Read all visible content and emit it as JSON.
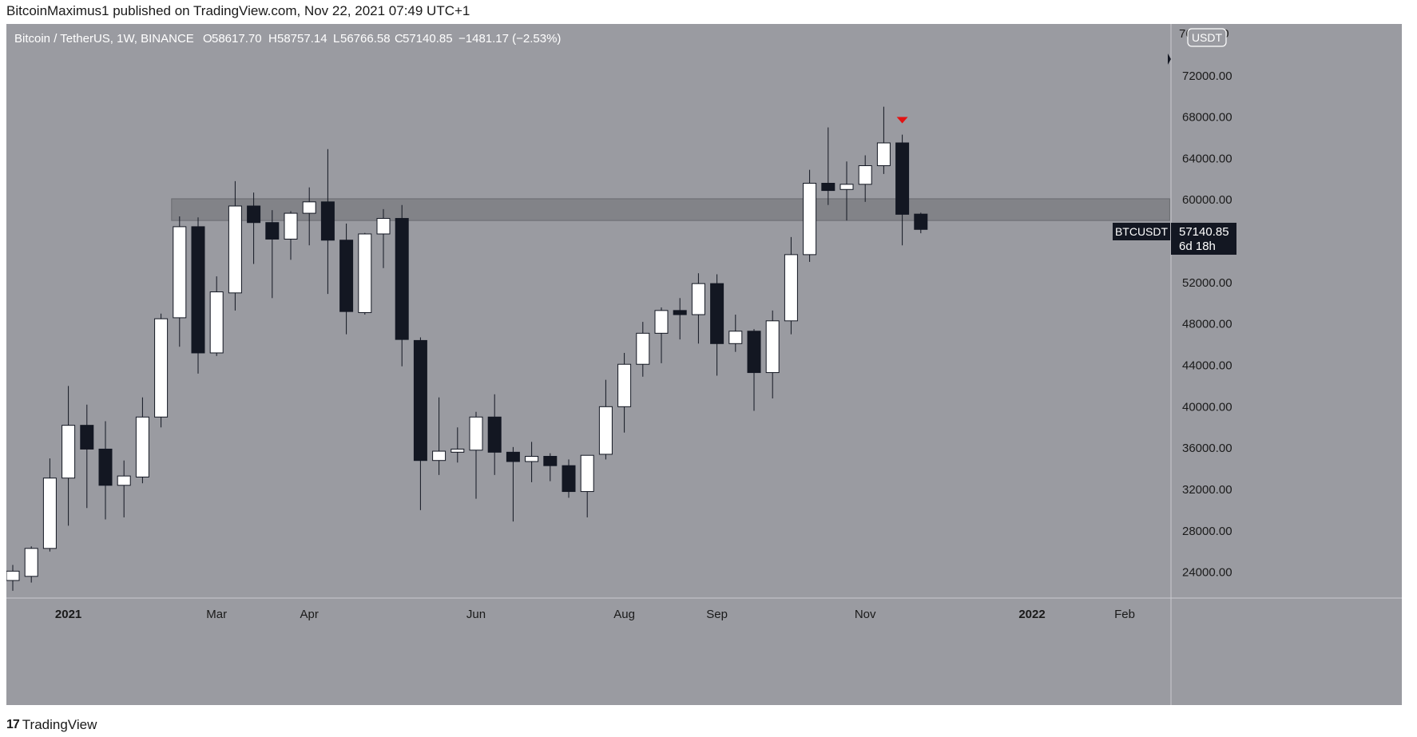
{
  "header": {
    "publisher_line": "BitcoinMaximus1 published on TradingView.com, Nov 22, 2021 07:49 UTC+1"
  },
  "legend": {
    "symbol": "Bitcoin / TetherUS, 1W, BINANCE",
    "open_label": "O",
    "open": "58617.70",
    "high_label": "H",
    "high": "58757.14",
    "low_label": "L",
    "low": "56766.58",
    "close_label": "C",
    "close": "57140.85",
    "change": "−1481.17 (−2.53%)"
  },
  "price_axis": {
    "currency_badge": "USDT",
    "top_partial_label": "76000.00"
  },
  "last_price_tag": {
    "ticker": "BTCUSDT",
    "price": "57140.85",
    "countdown": "6d 18h"
  },
  "footer": {
    "brand": "TradingView",
    "logo_mark": "17"
  },
  "colors": {
    "plot_background": "#9a9ba1",
    "bull_body": "#ffffff",
    "bear_body": "#131722",
    "wick": "#131722",
    "zone_fill": "#7a7b80",
    "marker": "#e31212",
    "axis_text": "#1a1a1a",
    "price_tag_bg": "#131722"
  },
  "chart_data": {
    "type": "candlestick",
    "title": "Bitcoin / TetherUS, 1W, BINANCE",
    "timeframe": "1W",
    "ylim": [
      21500,
      77000
    ],
    "y_ticks": [
      24000,
      28000,
      32000,
      36000,
      40000,
      44000,
      48000,
      52000,
      56000,
      60000,
      64000,
      68000,
      72000
    ],
    "y_tick_labels": [
      "24000.00",
      "28000.00",
      "32000.00",
      "36000.00",
      "40000.00",
      "44000.00",
      "48000.00",
      "52000.00",
      "56000.00",
      "60000.00",
      "64000.00",
      "68000.00",
      "72000.00"
    ],
    "x_labels": [
      {
        "label": "2021",
        "index": 3,
        "bold": true
      },
      {
        "label": "Mar",
        "index": 11,
        "bold": false
      },
      {
        "label": "Apr",
        "index": 16,
        "bold": false
      },
      {
        "label": "Jun",
        "index": 25,
        "bold": false
      },
      {
        "label": "Aug",
        "index": 33,
        "bold": false
      },
      {
        "label": "Sep",
        "index": 38,
        "bold": false
      },
      {
        "label": "Nov",
        "index": 46,
        "bold": false
      },
      {
        "label": "2022",
        "index": 55,
        "bold": true
      },
      {
        "label": "Feb",
        "index": 60,
        "bold": false
      }
    ],
    "x_count": 64,
    "candles": [
      {
        "o": 23200,
        "h": 24700,
        "l": 22200,
        "c": 24100
      },
      {
        "o": 23600,
        "h": 26500,
        "l": 23000,
        "c": 26300
      },
      {
        "o": 26300,
        "h": 35000,
        "l": 26000,
        "c": 33100
      },
      {
        "o": 33100,
        "h": 42000,
        "l": 28500,
        "c": 38200
      },
      {
        "o": 38200,
        "h": 40200,
        "l": 30200,
        "c": 35900
      },
      {
        "o": 35900,
        "h": 38600,
        "l": 29100,
        "c": 32400
      },
      {
        "o": 32400,
        "h": 34800,
        "l": 29300,
        "c": 33300
      },
      {
        "o": 33200,
        "h": 40900,
        "l": 32600,
        "c": 39000
      },
      {
        "o": 39000,
        "h": 49000,
        "l": 38000,
        "c": 48500
      },
      {
        "o": 48600,
        "h": 58400,
        "l": 45800,
        "c": 57400
      },
      {
        "o": 57400,
        "h": 58300,
        "l": 43200,
        "c": 45200
      },
      {
        "o": 45200,
        "h": 52600,
        "l": 44900,
        "c": 51100
      },
      {
        "o": 51000,
        "h": 61800,
        "l": 49300,
        "c": 59400
      },
      {
        "o": 59400,
        "h": 60700,
        "l": 53800,
        "c": 57800
      },
      {
        "o": 57800,
        "h": 59000,
        "l": 50500,
        "c": 56200
      },
      {
        "o": 56200,
        "h": 58900,
        "l": 54200,
        "c": 58700
      },
      {
        "o": 58700,
        "h": 61200,
        "l": 55600,
        "c": 59800
      },
      {
        "o": 59800,
        "h": 64900,
        "l": 50900,
        "c": 56100
      },
      {
        "o": 56100,
        "h": 57700,
        "l": 47000,
        "c": 49200
      },
      {
        "o": 49100,
        "h": 56800,
        "l": 48900,
        "c": 56700
      },
      {
        "o": 56700,
        "h": 59100,
        "l": 53400,
        "c": 58200
      },
      {
        "o": 58200,
        "h": 59500,
        "l": 43900,
        "c": 46500
      },
      {
        "o": 46400,
        "h": 46700,
        "l": 30000,
        "c": 34800
      },
      {
        "o": 34800,
        "h": 40900,
        "l": 33400,
        "c": 35700
      },
      {
        "o": 35600,
        "h": 38000,
        "l": 34600,
        "c": 35900
      },
      {
        "o": 35800,
        "h": 39500,
        "l": 31100,
        "c": 39000
      },
      {
        "o": 39000,
        "h": 41200,
        "l": 33400,
        "c": 35600
      },
      {
        "o": 35600,
        "h": 36100,
        "l": 28900,
        "c": 34700
      },
      {
        "o": 34700,
        "h": 36600,
        "l": 32700,
        "c": 35200
      },
      {
        "o": 35200,
        "h": 35500,
        "l": 32800,
        "c": 34300
      },
      {
        "o": 34300,
        "h": 34900,
        "l": 31200,
        "c": 31800
      },
      {
        "o": 31800,
        "h": 35300,
        "l": 29300,
        "c": 35300
      },
      {
        "o": 35400,
        "h": 42600,
        "l": 34900,
        "c": 40000
      },
      {
        "o": 40000,
        "h": 45200,
        "l": 37500,
        "c": 44100
      },
      {
        "o": 44100,
        "h": 48200,
        "l": 42900,
        "c": 47100
      },
      {
        "o": 47100,
        "h": 49600,
        "l": 44200,
        "c": 49300
      },
      {
        "o": 49300,
        "h": 50500,
        "l": 46500,
        "c": 48900
      },
      {
        "o": 48900,
        "h": 52900,
        "l": 46100,
        "c": 51900
      },
      {
        "o": 51900,
        "h": 52800,
        "l": 43000,
        "c": 46100
      },
      {
        "o": 46100,
        "h": 48900,
        "l": 45300,
        "c": 47300
      },
      {
        "o": 47300,
        "h": 47500,
        "l": 39600,
        "c": 43300
      },
      {
        "o": 43300,
        "h": 49300,
        "l": 40800,
        "c": 48300
      },
      {
        "o": 48300,
        "h": 56400,
        "l": 47000,
        "c": 54700
      },
      {
        "o": 54700,
        "h": 62900,
        "l": 54000,
        "c": 61600
      },
      {
        "o": 61600,
        "h": 67000,
        "l": 59500,
        "c": 60900
      },
      {
        "o": 61000,
        "h": 63700,
        "l": 58000,
        "c": 61500
      },
      {
        "o": 61500,
        "h": 64300,
        "l": 59800,
        "c": 63300
      },
      {
        "o": 63300,
        "h": 69000,
        "l": 62500,
        "c": 65500
      },
      {
        "o": 65500,
        "h": 66300,
        "l": 55600,
        "c": 58600
      },
      {
        "o": 58617.7,
        "h": 58757.14,
        "l": 56766.58,
        "c": 57140.85
      }
    ],
    "zone": {
      "from": 58000,
      "to": 60100,
      "start_index": 9,
      "end_index": 62
    },
    "marker": {
      "index": 48,
      "price": 67700,
      "shape": "triangle-down"
    },
    "last_price": 57140.85
  }
}
